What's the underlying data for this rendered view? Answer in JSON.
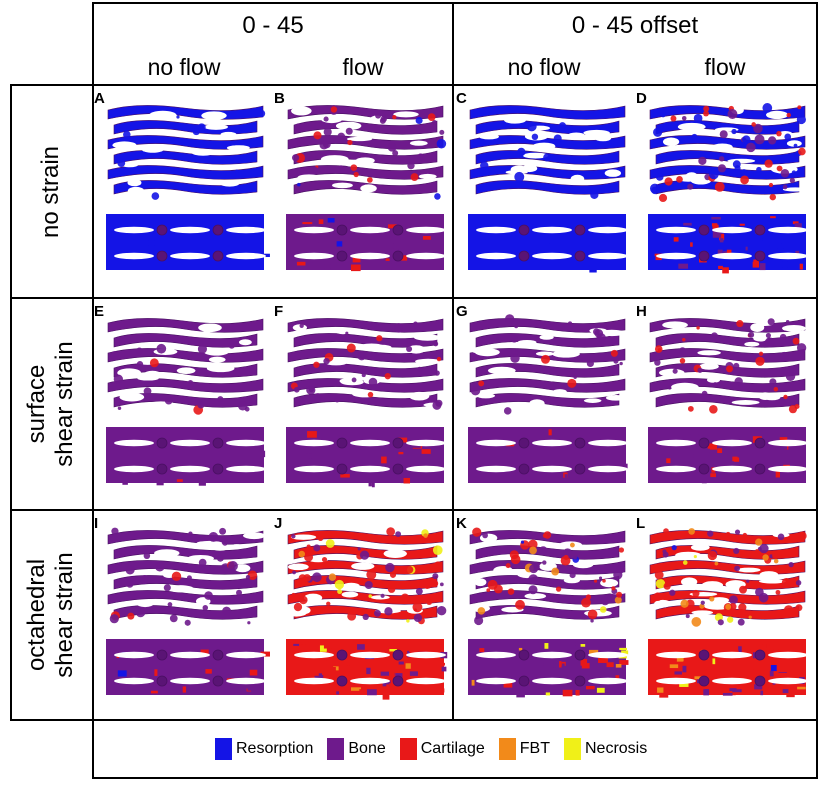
{
  "colors": {
    "resorption": "#1414e6",
    "bone": "#6e1a8c",
    "cartilage": "#e81818",
    "fbt": "#f28a1a",
    "necrosis": "#f0f018",
    "dark_bone": "#4a0f63",
    "mid_bone": "#5a1475"
  },
  "column_groups": [
    {
      "title": "0 - 45",
      "subs": [
        "no flow",
        "flow"
      ]
    },
    {
      "title": "0 - 45 offset",
      "subs": [
        "no flow",
        "flow"
      ]
    }
  ],
  "rows": [
    {
      "label_lines": [
        "no strain"
      ]
    },
    {
      "label_lines": [
        "surface",
        "shear strain"
      ]
    },
    {
      "label_lines": [
        "octahedral",
        "shear strain"
      ]
    }
  ],
  "panels": [
    {
      "letter": "A",
      "mix": {
        "resorption": 1.0,
        "bone": 0.0,
        "cartilage": 0.0,
        "fbt": 0.0,
        "necrosis": 0.0
      }
    },
    {
      "letter": "B",
      "mix": {
        "resorption": 0.15,
        "bone": 0.65,
        "cartilage": 0.2,
        "fbt": 0.0,
        "necrosis": 0.0
      }
    },
    {
      "letter": "C",
      "mix": {
        "resorption": 1.0,
        "bone": 0.0,
        "cartilage": 0.0,
        "fbt": 0.0,
        "necrosis": 0.0
      }
    },
    {
      "letter": "D",
      "mix": {
        "resorption": 0.4,
        "bone": 0.3,
        "cartilage": 0.3,
        "fbt": 0.0,
        "necrosis": 0.0
      }
    },
    {
      "letter": "E",
      "mix": {
        "resorption": 0.0,
        "bone": 0.9,
        "cartilage": 0.1,
        "fbt": 0.0,
        "necrosis": 0.0
      }
    },
    {
      "letter": "F",
      "mix": {
        "resorption": 0.0,
        "bone": 0.75,
        "cartilage": 0.25,
        "fbt": 0.0,
        "necrosis": 0.0
      }
    },
    {
      "letter": "G",
      "mix": {
        "resorption": 0.0,
        "bone": 0.85,
        "cartilage": 0.15,
        "fbt": 0.0,
        "necrosis": 0.0
      }
    },
    {
      "letter": "H",
      "mix": {
        "resorption": 0.0,
        "bone": 0.6,
        "cartilage": 0.4,
        "fbt": 0.0,
        "necrosis": 0.0
      }
    },
    {
      "letter": "I",
      "mix": {
        "resorption": 0.05,
        "bone": 0.7,
        "cartilage": 0.25,
        "fbt": 0.0,
        "necrosis": 0.0
      }
    },
    {
      "letter": "J",
      "mix": {
        "resorption": 0.0,
        "bone": 0.35,
        "cartilage": 0.5,
        "fbt": 0.05,
        "necrosis": 0.1
      }
    },
    {
      "letter": "K",
      "mix": {
        "resorption": 0.05,
        "bone": 0.45,
        "cartilage": 0.35,
        "fbt": 0.1,
        "necrosis": 0.05
      }
    },
    {
      "letter": "L",
      "mix": {
        "resorption": 0.05,
        "bone": 0.35,
        "cartilage": 0.4,
        "fbt": 0.15,
        "necrosis": 0.05
      }
    }
  ],
  "legend": [
    {
      "label": "Resorption",
      "color_key": "resorption"
    },
    {
      "label": "Bone",
      "color_key": "bone"
    },
    {
      "label": "Cartilage",
      "color_key": "cartilage"
    },
    {
      "label": "FBT",
      "color_key": "fbt"
    },
    {
      "label": "Necrosis",
      "color_key": "necrosis"
    }
  ]
}
